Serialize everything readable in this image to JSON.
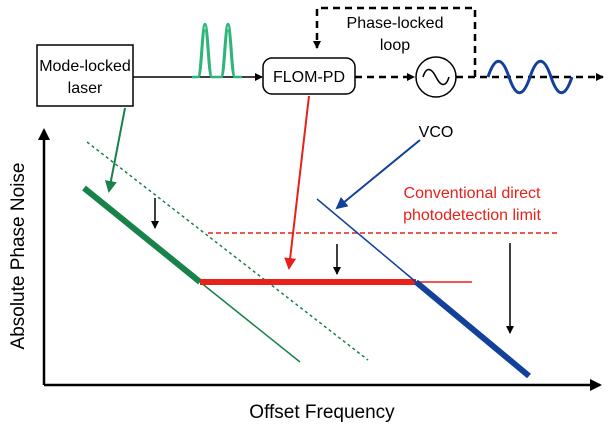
{
  "blocks": {
    "laser_line1": "Mode-locked",
    "laser_line2": "laser",
    "flompd": "FLOM-PD",
    "vco": "VCO",
    "pll_line1": "Phase-locked",
    "pll_line2": "loop"
  },
  "annotations": {
    "limit_line1": "Conventional direct",
    "limit_line2": "photodetection limit"
  },
  "axes": {
    "xlabel": "Offset Frequency",
    "ylabel": "Absolute Phase Noise"
  },
  "colors": {
    "laser": "#17824a",
    "flompd": "#e8211a",
    "vco": "#12409a",
    "pulse": "#2fb57a",
    "limit": "#e8211a",
    "black": "#000000"
  }
}
